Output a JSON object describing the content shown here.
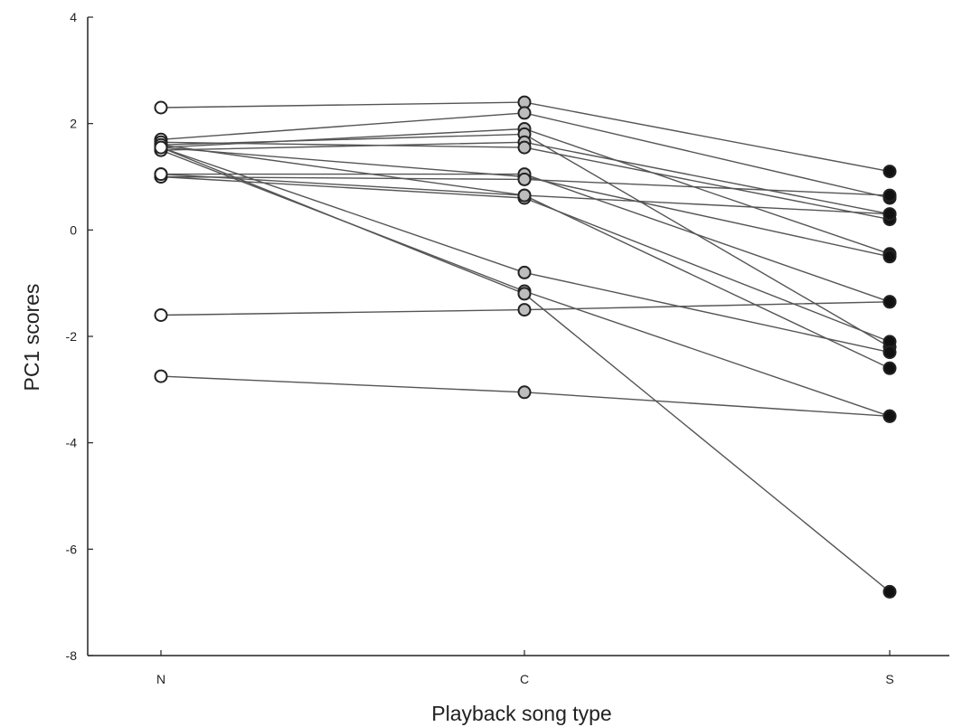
{
  "chart_data": {
    "type": "line",
    "title": "",
    "xlabel": "Playback song type",
    "ylabel": "PC1 scores",
    "categories": [
      "N",
      "C",
      "S"
    ],
    "ylim": [
      -8,
      4
    ],
    "yticks": [
      4,
      2,
      0,
      -2,
      -4,
      -6,
      -8
    ],
    "grid": false,
    "legend": "none",
    "marker_styles": [
      "open",
      "gray",
      "filled"
    ],
    "colors": {
      "line": "#555555",
      "marker_stroke": "#222222",
      "marker_N": "#ffffff",
      "marker_C": "#bdbdbd",
      "marker_S": "#111111",
      "axis": "#222222"
    },
    "series": [
      {
        "values": [
          2.3,
          2.4,
          1.1
        ]
      },
      {
        "values": [
          1.7,
          2.2,
          0.6
        ]
      },
      {
        "values": [
          1.55,
          1.9,
          -0.45
        ]
      },
      {
        "values": [
          1.6,
          1.8,
          -2.2
        ]
      },
      {
        "values": [
          1.5,
          1.65,
          0.3
        ]
      },
      {
        "values": [
          1.65,
          1.55,
          0.2
        ]
      },
      {
        "values": [
          1.55,
          1.0,
          -0.5
        ]
      },
      {
        "values": [
          1.05,
          1.05,
          -1.35
        ]
      },
      {
        "values": [
          1.0,
          0.95,
          0.65
        ]
      },
      {
        "values": [
          1.6,
          0.65,
          0.3
        ]
      },
      {
        "values": [
          1.0,
          0.6,
          -2.1
        ]
      },
      {
        "values": [
          1.55,
          -0.8,
          -2.3
        ]
      },
      {
        "values": [
          1.5,
          -1.15,
          -3.5
        ]
      },
      {
        "values": [
          1.55,
          -1.2,
          -6.8
        ]
      },
      {
        "values": [
          -1.6,
          -1.5,
          -1.35
        ]
      },
      {
        "values": [
          -2.75,
          -3.05,
          -3.5
        ]
      },
      {
        "values": [
          1.05,
          0.65,
          -2.6
        ]
      }
    ]
  }
}
